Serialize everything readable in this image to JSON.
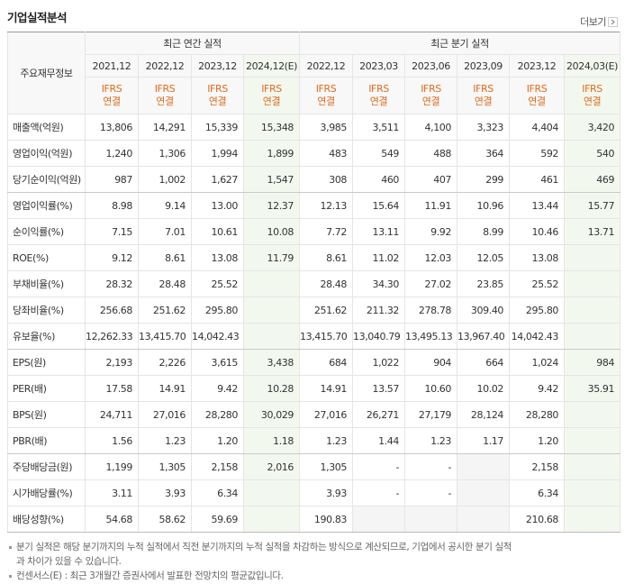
{
  "header": {
    "title": "기업실적분석",
    "more": "더보기"
  },
  "table": {
    "corner": "주요재무정보",
    "groups": [
      {
        "label": "최근 연간 실적",
        "span": 4
      },
      {
        "label": "최근 분기 실적",
        "span": 6
      }
    ],
    "columns": [
      {
        "period": "2021,12",
        "standard": "IFRS",
        "scope": "연결",
        "estimate": false
      },
      {
        "period": "2022,12",
        "standard": "IFRS",
        "scope": "연결",
        "estimate": false
      },
      {
        "period": "2023,12",
        "standard": "IFRS",
        "scope": "연결",
        "estimate": false
      },
      {
        "period": "2024,12(E)",
        "standard": "IFRS",
        "scope": "연결",
        "estimate": true
      },
      {
        "period": "2022,12",
        "standard": "IFRS",
        "scope": "연결",
        "estimate": false
      },
      {
        "period": "2023,03",
        "standard": "IFRS",
        "scope": "연결",
        "estimate": false
      },
      {
        "period": "2023,06",
        "standard": "IFRS",
        "scope": "연결",
        "estimate": false
      },
      {
        "period": "2023,09",
        "standard": "IFRS",
        "scope": "연결",
        "estimate": false
      },
      {
        "period": "2023,12",
        "standard": "IFRS",
        "scope": "연결",
        "estimate": false
      },
      {
        "period": "2024,03(E)",
        "standard": "IFRS",
        "scope": "연결",
        "estimate": true
      }
    ],
    "rows": [
      {
        "label": "매출액(억원)",
        "values": [
          "13,806",
          "14,291",
          "15,339",
          "15,348",
          "3,985",
          "3,511",
          "4,100",
          "3,323",
          "4,404",
          "3,420"
        ]
      },
      {
        "label": "영업이익(억원)",
        "values": [
          "1,240",
          "1,306",
          "1,994",
          "1,899",
          "483",
          "549",
          "488",
          "364",
          "592",
          "540"
        ]
      },
      {
        "label": "당기순이익(억원)",
        "values": [
          "987",
          "1,002",
          "1,627",
          "1,547",
          "308",
          "460",
          "407",
          "299",
          "461",
          "469"
        ],
        "group_end": true
      },
      {
        "label": "영업이익률(%)",
        "values": [
          "8.98",
          "9.14",
          "13.00",
          "12.37",
          "12.13",
          "15.64",
          "11.91",
          "10.96",
          "13.44",
          "15.77"
        ]
      },
      {
        "label": "순이익률(%)",
        "values": [
          "7.15",
          "7.01",
          "10.61",
          "10.08",
          "7.72",
          "13.11",
          "9.92",
          "8.99",
          "10.46",
          "13.71"
        ]
      },
      {
        "label": "ROE(%)",
        "values": [
          "9.12",
          "8.61",
          "13.08",
          "11.79",
          "8.61",
          "11.02",
          "12.03",
          "12.05",
          "13.08",
          null
        ]
      },
      {
        "label": "부채비율(%)",
        "values": [
          "28.32",
          "28.48",
          "25.52",
          null,
          "28.48",
          "34.30",
          "27.02",
          "23.85",
          "25.52",
          null
        ]
      },
      {
        "label": "당좌비율(%)",
        "values": [
          "256.68",
          "251.62",
          "295.80",
          null,
          "251.62",
          "211.32",
          "278.78",
          "309.40",
          "295.80",
          null
        ]
      },
      {
        "label": "유보율(%)",
        "values": [
          "12,262.33",
          "13,415.70",
          "14,042.43",
          null,
          "13,415.70",
          "13,040.79",
          "13,495.13",
          "13,967.40",
          "14,042.43",
          null
        ],
        "group_end": true
      },
      {
        "label": "EPS(원)",
        "values": [
          "2,193",
          "2,226",
          "3,615",
          "3,438",
          "684",
          "1,022",
          "904",
          "664",
          "1,024",
          "984"
        ]
      },
      {
        "label": "PER(배)",
        "values": [
          "17.58",
          "14.91",
          "9.42",
          "10.28",
          "14.91",
          "13.57",
          "10.60",
          "10.02",
          "9.42",
          "35.91"
        ]
      },
      {
        "label": "BPS(원)",
        "values": [
          "24,711",
          "27,016",
          "28,280",
          "30,029",
          "27,016",
          "26,271",
          "27,179",
          "28,124",
          "28,280",
          null
        ]
      },
      {
        "label": "PBR(배)",
        "values": [
          "1.56",
          "1.23",
          "1.20",
          "1.18",
          "1.23",
          "1.44",
          "1.23",
          "1.17",
          "1.20",
          null
        ],
        "group_end": true
      },
      {
        "label": "주당배당금(원)",
        "values": [
          "1,199",
          "1,305",
          "2,158",
          "2,016",
          "1,305",
          "-",
          "-",
          null,
          "2,158",
          null
        ]
      },
      {
        "label": "시가배당률(%)",
        "values": [
          "3.11",
          "3.93",
          "6.34",
          null,
          "3.93",
          "-",
          "-",
          null,
          "6.34",
          null
        ]
      },
      {
        "label": "배당성향(%)",
        "values": [
          "54.68",
          "58.62",
          "59.69",
          null,
          "190.83",
          null,
          null,
          null,
          "210.68",
          null
        ]
      }
    ]
  },
  "notes": [
    "분기 실적은 해당 분기까지의 누적 실적에서 직전 분기까지의 누적 실적을 차감하는 방식으로 계산되므로, 기업에서 공시한 분기 실적과 차이가 있을 수 있습니다.",
    "컨센서스(E) : 최근 3개월간 증권사에서 발표한 전망치의 평균값입니다."
  ]
}
